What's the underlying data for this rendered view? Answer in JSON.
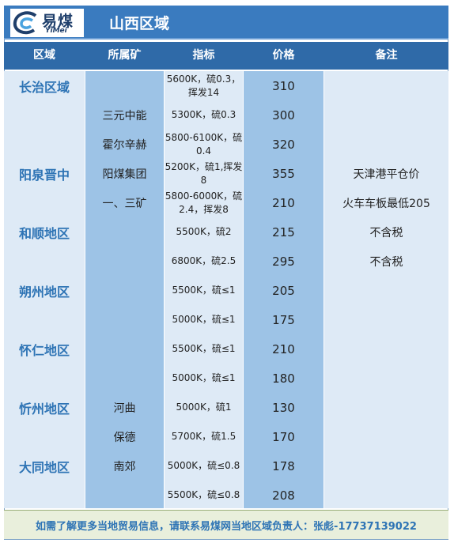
{
  "logo": {
    "cn": "易煤",
    "en": "YiMei"
  },
  "title": "山西区域",
  "headers": {
    "region": "区域",
    "mine": "所属矿",
    "spec": "指标",
    "price": "价格",
    "note": "备注"
  },
  "regions": [
    "长治区域",
    "阳泉晋中",
    "和顺地区",
    "朔州地区",
    "怀仁地区",
    "忻州地区",
    "大同地区"
  ],
  "mines": [
    "三元中能",
    "霍尔辛赫",
    "阳煤集团",
    "一、三矿",
    "河曲",
    "保德",
    "南郊"
  ],
  "specs": [
    "5600K，硫0.3，挥发14",
    "5300K，硫0.3",
    "5800-6100K，硫0.4",
    "5200K，硫1,挥发8",
    "5800-6000K，硫2.4，挥发8",
    "5500K，硫2",
    "6800K，硫2.5",
    "5500K，硫≤1",
    "5000K，硫≤1",
    "5500K，硫≤1",
    "5000K，硫≤1",
    "5000K，硫1",
    "5700K，硫1.5",
    "5000K，硫≤0.8",
    "5500K，硫≤0.8"
  ],
  "prices": [
    "310",
    "300",
    "320",
    "355",
    "210",
    "215",
    "295",
    "205",
    "175",
    "210",
    "180",
    "130",
    "170",
    "178",
    "208"
  ],
  "notes": [
    "天津港平仓价",
    "火车车板最低205",
    "不含税",
    "不含税"
  ],
  "footer": "如需了解更多当地贸易信息，请联系易煤网当地区域负责人：张彪-17737139022",
  "colors": {
    "title_bar": "#3a7bbf",
    "header": "#2f6aa8",
    "light_col": "#deeaf6",
    "dark_col": "#9dc3e6",
    "region_text": "#2e74b5",
    "footer_bg": "#e9efdc"
  }
}
